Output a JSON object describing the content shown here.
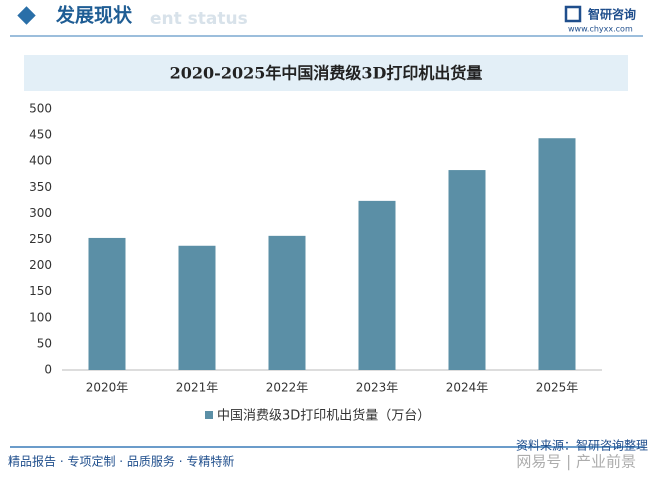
{
  "header": {
    "title": "发展现状",
    "subtitle_en": "ent status",
    "brand": "智研咨询",
    "url": "www.chyxx.com"
  },
  "chart_data": {
    "type": "bar",
    "title": "2020-2025年中国消费级3D打印机出货量",
    "categories": [
      "2020年",
      "2021年",
      "2022年",
      "2023年",
      "2024年",
      "2025年"
    ],
    "series": [
      {
        "name": "中国消费级3D打印机出货量（万台）",
        "color": "#5b8fa6",
        "values": [
          253,
          238,
          257,
          324,
          383,
          444
        ]
      }
    ],
    "ylim": [
      0,
      500
    ],
    "yticks": [
      0,
      50,
      100,
      150,
      200,
      250,
      300,
      350,
      400,
      450,
      500
    ],
    "grid": false,
    "legend": "bottom"
  },
  "footer": {
    "source": "资料来源：智研咨询整理",
    "tagline": "精品报告 · 专项定制 · 品质服务 · 专精特新",
    "watermark": "网易号 | 产业前景"
  }
}
